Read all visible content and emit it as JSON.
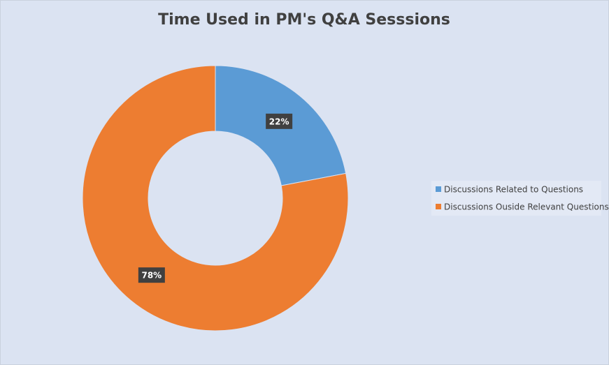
{
  "chart_data": {
    "type": "donut",
    "title": "Time Used in PM's Q&A Sesssions",
    "categories": [
      "Discussions Related to Questions",
      "Discussions Ouside Relevant Questions"
    ],
    "values": [
      22,
      78
    ],
    "value_labels": [
      "22%",
      "78%"
    ],
    "colors": [
      "#5b9bd5",
      "#ed7d31"
    ],
    "legend": "right"
  }
}
